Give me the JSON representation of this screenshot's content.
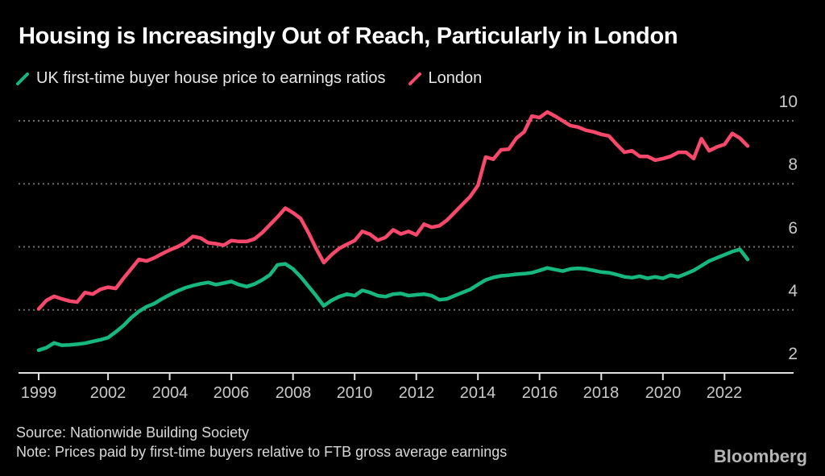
{
  "title": "Housing is Increasingly Out of Reach, Particularly in London",
  "legend": [
    {
      "label": "UK first-time buyer house price to earnings ratios",
      "color": "#17b87f"
    },
    {
      "label": "London",
      "color": "#f8486c"
    }
  ],
  "source_line": "Source: Nationwide Building Society",
  "note_line": "Note: Prices paid by first-time buyers relative to FTB gross average earnings",
  "brand": "Bloomberg",
  "colors": {
    "background": "#000000",
    "title": "#ffffff",
    "legend_text": "#e8e8e8",
    "axis_labels": "#c9c9c9",
    "grid": "#6e6e6e",
    "axis": "#e0e0e0",
    "uk_series": "#17b87f",
    "london_series": "#f8486c"
  },
  "chart_data": {
    "type": "line",
    "title": "Housing is Increasingly Out of Reach, Particularly in London",
    "xlabel": "",
    "ylabel": "",
    "frequency": "quarterly",
    "x_start_year": 1999.75,
    "x_step_years": 0.25,
    "x_tick_labels": [
      "1999",
      "2002",
      "2004",
      "2006",
      "2008",
      "2010",
      "2012",
      "2014",
      "2016",
      "2018",
      "2020",
      "2022"
    ],
    "x_tick_indices": [
      0,
      9,
      17,
      25,
      33,
      41,
      49,
      57,
      65,
      73,
      81,
      89
    ],
    "y_ticks": [
      2,
      4,
      6,
      8,
      10
    ],
    "ylim": [
      2,
      10.5
    ],
    "grid": "horizontal dotted",
    "legend_position": "top-left",
    "series": [
      {
        "name": "UK first-time buyer house price to earnings ratios",
        "color": "#17b87f",
        "values": [
          2.72,
          2.8,
          2.95,
          2.88,
          2.89,
          2.91,
          2.94,
          3.0,
          3.05,
          3.12,
          3.3,
          3.5,
          3.75,
          3.95,
          4.1,
          4.2,
          4.35,
          4.48,
          4.6,
          4.7,
          4.77,
          4.83,
          4.87,
          4.8,
          4.85,
          4.9,
          4.8,
          4.74,
          4.82,
          4.95,
          5.11,
          5.43,
          5.46,
          5.3,
          5.05,
          4.75,
          4.45,
          4.13,
          4.3,
          4.42,
          4.5,
          4.45,
          4.62,
          4.55,
          4.45,
          4.42,
          4.5,
          4.52,
          4.45,
          4.48,
          4.5,
          4.45,
          4.32,
          4.35,
          4.45,
          4.55,
          4.65,
          4.8,
          4.95,
          5.03,
          5.08,
          5.1,
          5.13,
          5.15,
          5.18,
          5.25,
          5.33,
          5.28,
          5.23,
          5.3,
          5.32,
          5.3,
          5.25,
          5.2,
          5.18,
          5.12,
          5.05,
          5.02,
          5.07,
          5.0,
          5.05,
          5.0,
          5.1,
          5.05,
          5.15,
          5.25,
          5.4,
          5.55,
          5.65,
          5.75,
          5.85,
          5.92,
          5.6
        ]
      },
      {
        "name": "London",
        "color": "#f8486c",
        "values": [
          4.03,
          4.3,
          4.43,
          4.35,
          4.28,
          4.25,
          4.55,
          4.5,
          4.65,
          4.72,
          4.68,
          5.0,
          5.3,
          5.6,
          5.55,
          5.65,
          5.78,
          5.9,
          6.0,
          6.13,
          6.33,
          6.28,
          6.13,
          6.1,
          6.05,
          6.2,
          6.17,
          6.17,
          6.25,
          6.45,
          6.7,
          6.95,
          7.23,
          7.08,
          6.9,
          6.45,
          5.95,
          5.5,
          5.75,
          5.95,
          6.08,
          6.2,
          6.49,
          6.4,
          6.21,
          6.3,
          6.54,
          6.41,
          6.49,
          6.38,
          6.72,
          6.62,
          6.67,
          6.85,
          7.1,
          7.35,
          7.6,
          7.95,
          8.85,
          8.78,
          9.08,
          9.1,
          9.45,
          9.65,
          10.15,
          10.1,
          10.28,
          10.15,
          10.0,
          9.85,
          9.8,
          9.7,
          9.65,
          9.57,
          9.52,
          9.25,
          9.0,
          9.05,
          8.87,
          8.87,
          8.75,
          8.8,
          8.87,
          9.0,
          9.0,
          8.8,
          9.43,
          9.05,
          9.17,
          9.25,
          9.6,
          9.45,
          9.2
        ]
      }
    ]
  }
}
